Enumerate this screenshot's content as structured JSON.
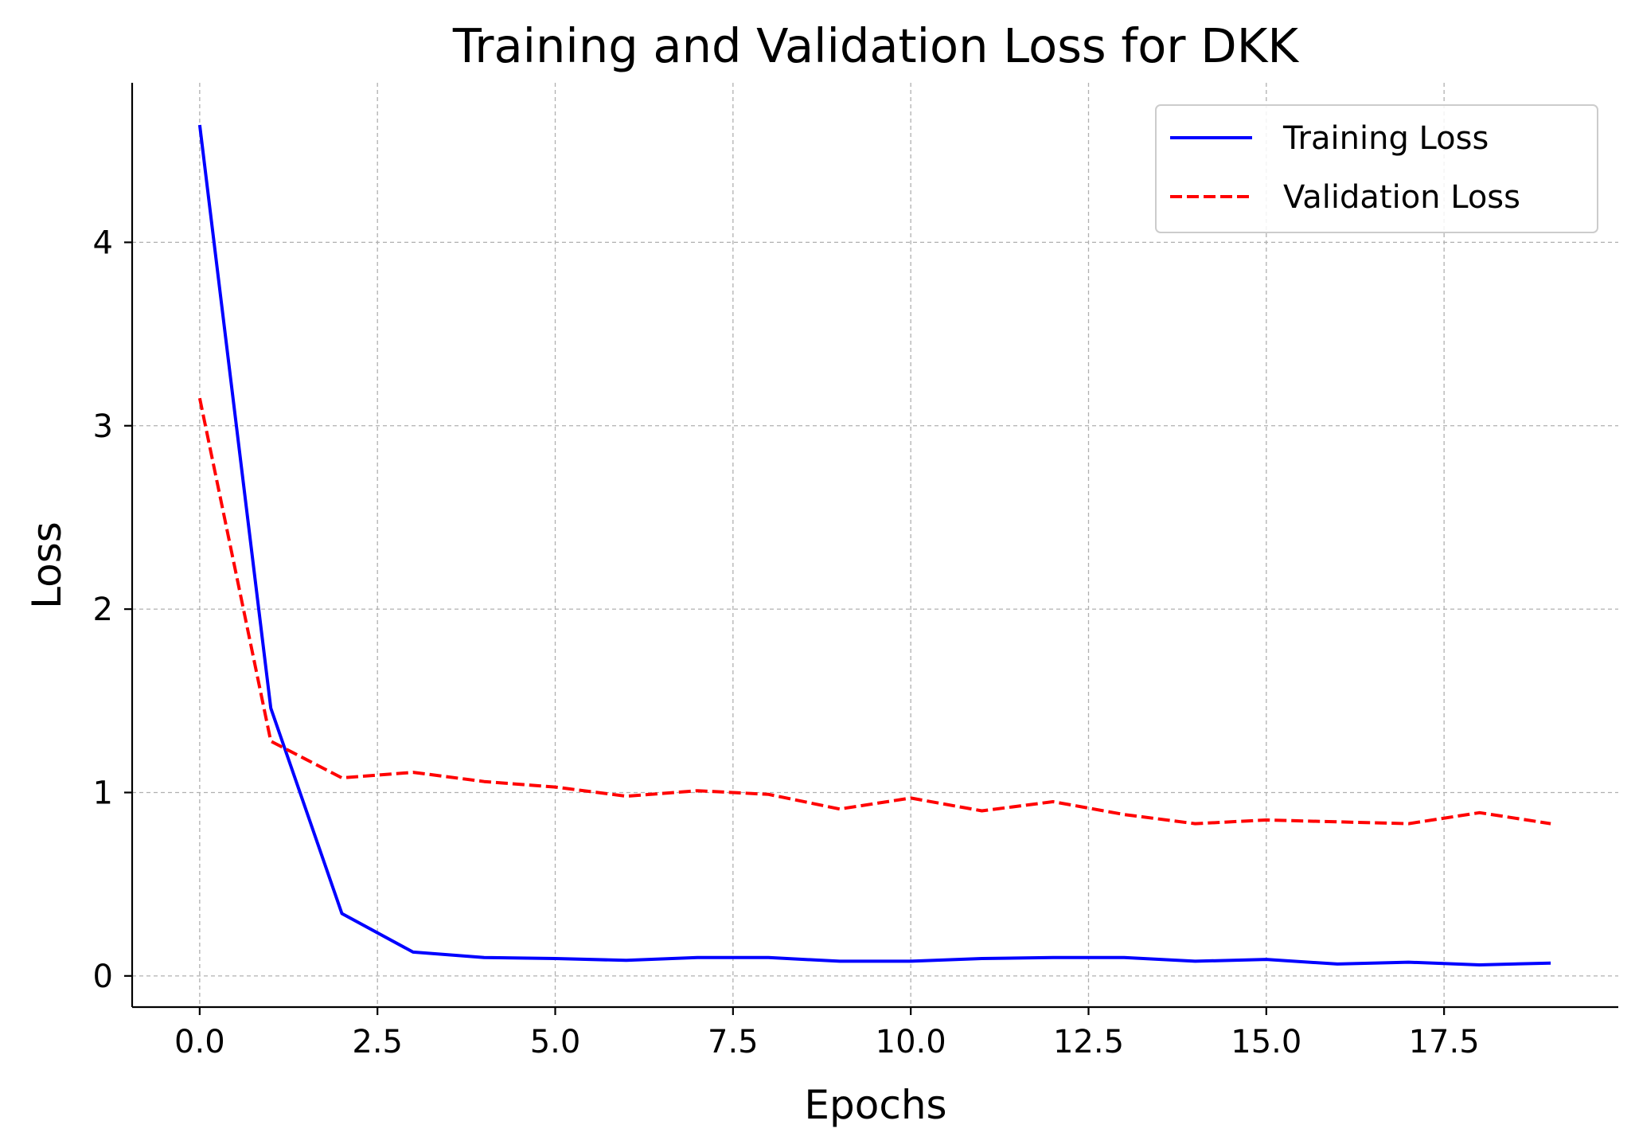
{
  "chart_data": {
    "type": "line",
    "title": "Training and Validation Loss for DKK",
    "xlabel": "Epochs",
    "ylabel": "Loss",
    "xlim": [
      -0.95,
      19.95
    ],
    "ylim": [
      -0.17,
      4.87
    ],
    "xticks": [
      0,
      2.5,
      5,
      7.5,
      10,
      12.5,
      15,
      17.5
    ],
    "xtick_labels": [
      "0.0",
      "2.5",
      "5.0",
      "7.5",
      "10.0",
      "12.5",
      "15.0",
      "17.5"
    ],
    "yticks": [
      0,
      1,
      2,
      3,
      4
    ],
    "ytick_labels": [
      "0",
      "1",
      "2",
      "3",
      "4"
    ],
    "grid": true,
    "legend_position": "top-right",
    "x": [
      0,
      1,
      2,
      3,
      4,
      5,
      6,
      7,
      8,
      9,
      10,
      11,
      12,
      13,
      14,
      15,
      16,
      17,
      18,
      19
    ],
    "series": [
      {
        "name": "Training Loss",
        "color": "#0000ff",
        "style": "solid",
        "values": [
          4.64,
          1.46,
          0.34,
          0.13,
          0.1,
          0.095,
          0.085,
          0.1,
          0.1,
          0.08,
          0.08,
          0.095,
          0.1,
          0.1,
          0.08,
          0.09,
          0.065,
          0.075,
          0.06,
          0.07
        ]
      },
      {
        "name": "Validation Loss",
        "color": "#ff0000",
        "style": "dashed",
        "values": [
          3.15,
          1.28,
          1.08,
          1.11,
          1.06,
          1.03,
          0.98,
          1.01,
          0.99,
          0.91,
          0.97,
          0.9,
          0.95,
          0.88,
          0.83,
          0.85,
          0.84,
          0.83,
          0.89,
          0.83
        ]
      }
    ]
  }
}
